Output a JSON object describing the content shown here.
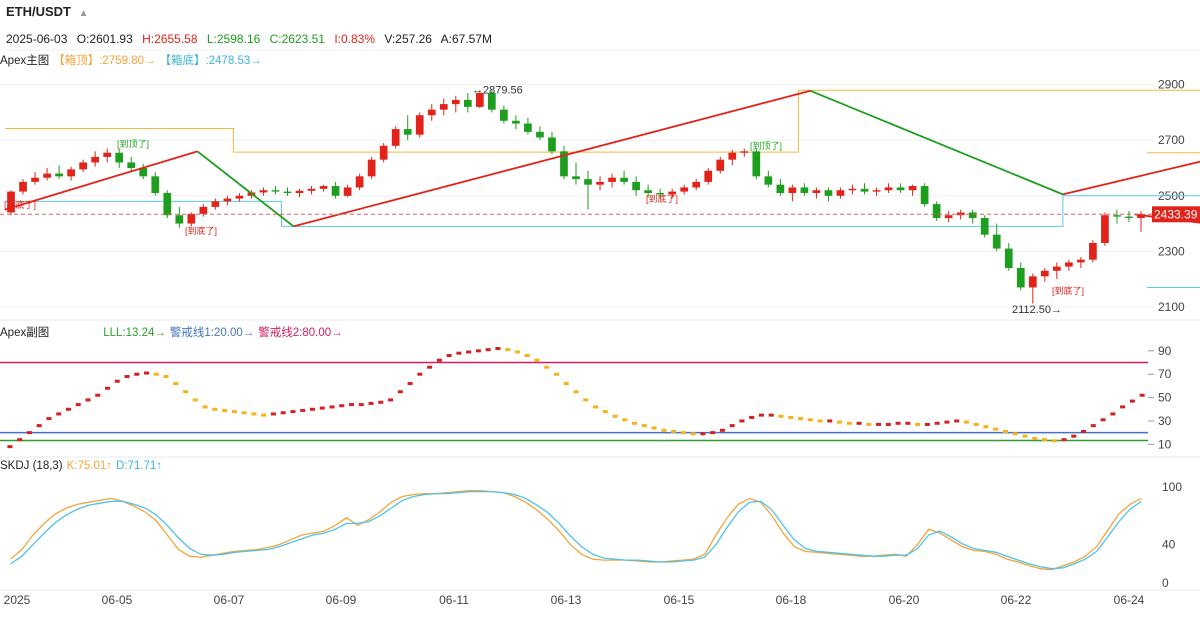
{
  "header": {
    "symbol": "ETH/USDT",
    "date": "2025-06-03",
    "open": "O:2601.93",
    "high": "H:2655.58",
    "low": "L:2598.16",
    "close": "C:2623.51",
    "change": "I:0.83%",
    "volume": "V:257.26",
    "amount": "A:67.57M"
  },
  "main_panel": {
    "name": "Apex主图",
    "box_top": "【箱顶】:2759.80→",
    "box_bottom": "【箱底】:2478.53→"
  },
  "sub_panel": {
    "name": "Apex副图",
    "lll": "LLL:13.24→",
    "warn1": "警戒线1:20.00→",
    "warn2": "警戒线2:80.00→"
  },
  "skdj_panel": {
    "name": "SKDJ (18,3)",
    "k": "K:75.01↑",
    "d": "D:71.71↑"
  },
  "colors": {
    "up": "#e2231a",
    "down": "#1e9e1e",
    "box_top": "#f4b83e",
    "box_bottom": "#5bc8e8",
    "k": "#f4a53a",
    "d": "#4cc3e8",
    "warn1": "#4472c4",
    "warn2": "#d81b60",
    "lll": "#2e9e2e"
  },
  "chart_data": [
    {
      "type": "candlestick",
      "yticks": [
        2100,
        2300,
        2500,
        2700,
        2900
      ],
      "ylim": [
        2060,
        2960
      ],
      "last_price": 2433.39,
      "last_price_label": "2433.39",
      "annotations": [
        {
          "label": "←2879.56",
          "value": 2879.56
        },
        {
          "label": "2112.50→",
          "value": 2112.5
        },
        {
          "label": "[到顶了]",
          "value": 2660
        },
        {
          "label": "[到顶了]",
          "value": 2670
        },
        {
          "label": "[到底了]",
          "value": 2380
        },
        {
          "label": "[到底了]",
          "value": 2500
        },
        {
          "label": "[到底了]",
          "value": 2163
        }
      ],
      "candles": [
        [
          2440,
          2520,
          2430,
          2515
        ],
        [
          2515,
          2560,
          2505,
          2550
        ],
        [
          2550,
          2585,
          2540,
          2565
        ],
        [
          2565,
          2600,
          2555,
          2580
        ],
        [
          2580,
          2610,
          2560,
          2570
        ],
        [
          2570,
          2605,
          2555,
          2595
        ],
        [
          2595,
          2630,
          2585,
          2620
        ],
        [
          2620,
          2660,
          2605,
          2640
        ],
        [
          2640,
          2670,
          2620,
          2655
        ],
        [
          2655,
          2670,
          2600,
          2620
        ],
        [
          2620,
          2640,
          2590,
          2600
        ],
        [
          2600,
          2615,
          2560,
          2570
        ],
        [
          2570,
          2585,
          2500,
          2510
        ],
        [
          2510,
          2520,
          2420,
          2430
        ],
        [
          2430,
          2460,
          2385,
          2400
        ],
        [
          2400,
          2440,
          2390,
          2435
        ],
        [
          2435,
          2470,
          2425,
          2460
        ],
        [
          2460,
          2490,
          2450,
          2480
        ],
        [
          2480,
          2500,
          2465,
          2490
        ],
        [
          2490,
          2510,
          2480,
          2500
        ],
        [
          2500,
          2520,
          2490,
          2512
        ],
        [
          2512,
          2530,
          2500,
          2520
        ],
        [
          2520,
          2535,
          2505,
          2515
        ],
        [
          2515,
          2530,
          2500,
          2510
        ],
        [
          2510,
          2525,
          2495,
          2518
        ],
        [
          2518,
          2535,
          2505,
          2525
        ],
        [
          2525,
          2540,
          2515,
          2535
        ],
        [
          2535,
          2550,
          2490,
          2500
        ],
        [
          2500,
          2540,
          2495,
          2530
        ],
        [
          2530,
          2580,
          2520,
          2570
        ],
        [
          2570,
          2640,
          2560,
          2630
        ],
        [
          2630,
          2690,
          2620,
          2680
        ],
        [
          2680,
          2750,
          2670,
          2740
        ],
        [
          2740,
          2790,
          2700,
          2720
        ],
        [
          2720,
          2800,
          2710,
          2790
        ],
        [
          2790,
          2830,
          2770,
          2810
        ],
        [
          2810,
          2850,
          2790,
          2830
        ],
        [
          2830,
          2860,
          2800,
          2845
        ],
        [
          2845,
          2870,
          2800,
          2820
        ],
        [
          2820,
          2880,
          2815,
          2870
        ],
        [
          2870,
          2880,
          2800,
          2810
        ],
        [
          2810,
          2825,
          2760,
          2770
        ],
        [
          2770,
          2790,
          2740,
          2760
        ],
        [
          2760,
          2780,
          2720,
          2730
        ],
        [
          2730,
          2750,
          2700,
          2710
        ],
        [
          2710,
          2730,
          2650,
          2660
        ],
        [
          2660,
          2680,
          2560,
          2570
        ],
        [
          2570,
          2620,
          2540,
          2560
        ],
        [
          2560,
          2590,
          2450,
          2540
        ],
        [
          2540,
          2570,
          2520,
          2550
        ],
        [
          2550,
          2580,
          2530,
          2565
        ],
        [
          2565,
          2590,
          2540,
          2550
        ],
        [
          2550,
          2570,
          2500,
          2520
        ],
        [
          2520,
          2540,
          2495,
          2510
        ],
        [
          2510,
          2525,
          2490,
          2505
        ],
        [
          2505,
          2525,
          2490,
          2515
        ],
        [
          2515,
          2540,
          2505,
          2530
        ],
        [
          2530,
          2560,
          2520,
          2550
        ],
        [
          2550,
          2600,
          2540,
          2590
        ],
        [
          2590,
          2640,
          2580,
          2630
        ],
        [
          2630,
          2665,
          2610,
          2655
        ],
        [
          2655,
          2670,
          2640,
          2660
        ],
        [
          2660,
          2670,
          2560,
          2570
        ],
        [
          2570,
          2590,
          2530,
          2540
        ],
        [
          2540,
          2560,
          2500,
          2510
        ],
        [
          2510,
          2540,
          2480,
          2530
        ],
        [
          2530,
          2545,
          2500,
          2510
        ],
        [
          2510,
          2530,
          2490,
          2520
        ],
        [
          2520,
          2530,
          2480,
          2500
        ],
        [
          2500,
          2530,
          2490,
          2520
        ],
        [
          2520,
          2540,
          2505,
          2525
        ],
        [
          2525,
          2545,
          2505,
          2515
        ],
        [
          2515,
          2530,
          2500,
          2520
        ],
        [
          2520,
          2545,
          2510,
          2530
        ],
        [
          2530,
          2545,
          2510,
          2520
        ],
        [
          2520,
          2540,
          2500,
          2535
        ],
        [
          2535,
          2545,
          2460,
          2470
        ],
        [
          2470,
          2480,
          2410,
          2420
        ],
        [
          2420,
          2445,
          2405,
          2430
        ],
        [
          2430,
          2450,
          2415,
          2440
        ],
        [
          2440,
          2450,
          2400,
          2420
        ],
        [
          2420,
          2430,
          2350,
          2360
        ],
        [
          2360,
          2400,
          2300,
          2310
        ],
        [
          2310,
          2330,
          2230,
          2240
        ],
        [
          2240,
          2260,
          2160,
          2170
        ],
        [
          2170,
          2220,
          2112,
          2210
        ],
        [
          2210,
          2240,
          2190,
          2230
        ],
        [
          2230,
          2260,
          2200,
          2245
        ],
        [
          2245,
          2270,
          2230,
          2260
        ],
        [
          2260,
          2280,
          2240,
          2270
        ],
        [
          2270,
          2340,
          2260,
          2330
        ],
        [
          2330,
          2440,
          2320,
          2430
        ],
        [
          2430,
          2450,
          2400,
          2425
        ],
        [
          2425,
          2445,
          2405,
          2420
        ],
        [
          2420,
          2445,
          2370,
          2433
        ]
      ]
    },
    {
      "type": "dot-line",
      "yticks": [
        10,
        30,
        50,
        70,
        90
      ],
      "ylim": [
        0,
        95
      ],
      "warn1": 20,
      "warn2": 80,
      "lll": 13.24,
      "values": [
        8,
        14,
        20,
        26,
        32,
        36,
        40,
        44,
        48,
        52,
        58,
        64,
        68,
        70,
        71,
        70,
        68,
        62,
        55,
        48,
        42,
        40,
        39,
        38,
        37,
        36,
        35,
        36,
        37,
        38,
        39,
        40,
        41,
        42,
        43,
        44,
        44,
        45,
        46,
        48,
        55,
        62,
        70,
        76,
        82,
        86,
        88,
        89,
        90,
        91,
        92,
        91,
        89,
        86,
        82,
        76,
        70,
        62,
        55,
        48,
        42,
        38,
        34,
        31,
        28,
        26,
        24,
        22,
        21,
        20,
        19,
        19,
        20,
        22,
        26,
        30,
        33,
        35,
        35,
        34,
        33,
        32,
        31,
        30,
        30,
        29,
        28,
        28,
        27,
        27,
        27,
        28,
        28,
        27,
        27,
        28,
        29,
        30,
        29,
        27,
        25,
        23,
        21,
        19,
        17,
        15,
        14,
        13,
        14,
        17,
        21,
        26,
        31,
        36,
        42,
        47,
        52
      ]
    },
    {
      "type": "line",
      "xticks": [
        "2025",
        "06-05",
        "06-07",
        "06-09",
        "06-11",
        "06-13",
        "06-15",
        "06-18",
        "06-20",
        "06-22",
        "06-24"
      ],
      "yticks": [
        0,
        40,
        100
      ],
      "ylim": [
        -5,
        105
      ],
      "series": [
        {
          "name": "K:75.01↑",
          "values": [
            25,
            35,
            50,
            62,
            72,
            78,
            82,
            84,
            86,
            88,
            85,
            80,
            74,
            65,
            50,
            35,
            28,
            27,
            29,
            31,
            33,
            34,
            35,
            37,
            40,
            45,
            50,
            52,
            54,
            60,
            68,
            60,
            66,
            74,
            84,
            90,
            92,
            93,
            93,
            94,
            95,
            96,
            96,
            95,
            94,
            90,
            84,
            76,
            66,
            54,
            40,
            30,
            25,
            24,
            24,
            24,
            23,
            22,
            22,
            23,
            24,
            25,
            30,
            50,
            68,
            82,
            88,
            84,
            70,
            52,
            38,
            33,
            32,
            31,
            30,
            29,
            28,
            28,
            29,
            30,
            28,
            40,
            56,
            52,
            45,
            38,
            34,
            33,
            30,
            25,
            22,
            18,
            15,
            14,
            18,
            22,
            28,
            38,
            55,
            72,
            82,
            88
          ]
        },
        {
          "name": "D:71.71↑",
          "values": [
            20,
            28,
            40,
            52,
            63,
            71,
            77,
            81,
            83,
            85,
            85,
            82,
            78,
            71,
            60,
            47,
            36,
            30,
            29,
            30,
            32,
            33,
            34,
            35,
            38,
            42,
            46,
            50,
            52,
            56,
            62,
            62,
            64,
            70,
            78,
            86,
            90,
            92,
            93,
            93,
            94,
            95,
            95,
            95,
            94,
            92,
            88,
            81,
            73,
            62,
            49,
            38,
            30,
            26,
            25,
            24,
            24,
            23,
            22,
            22,
            23,
            24,
            27,
            40,
            58,
            74,
            84,
            85,
            76,
            60,
            45,
            36,
            33,
            32,
            31,
            30,
            29,
            28,
            28,
            29,
            29,
            36,
            50,
            54,
            48,
            41,
            36,
            34,
            32,
            28,
            24,
            20,
            17,
            15,
            16,
            20,
            25,
            33,
            48,
            64,
            77,
            85
          ]
        }
      ]
    }
  ]
}
